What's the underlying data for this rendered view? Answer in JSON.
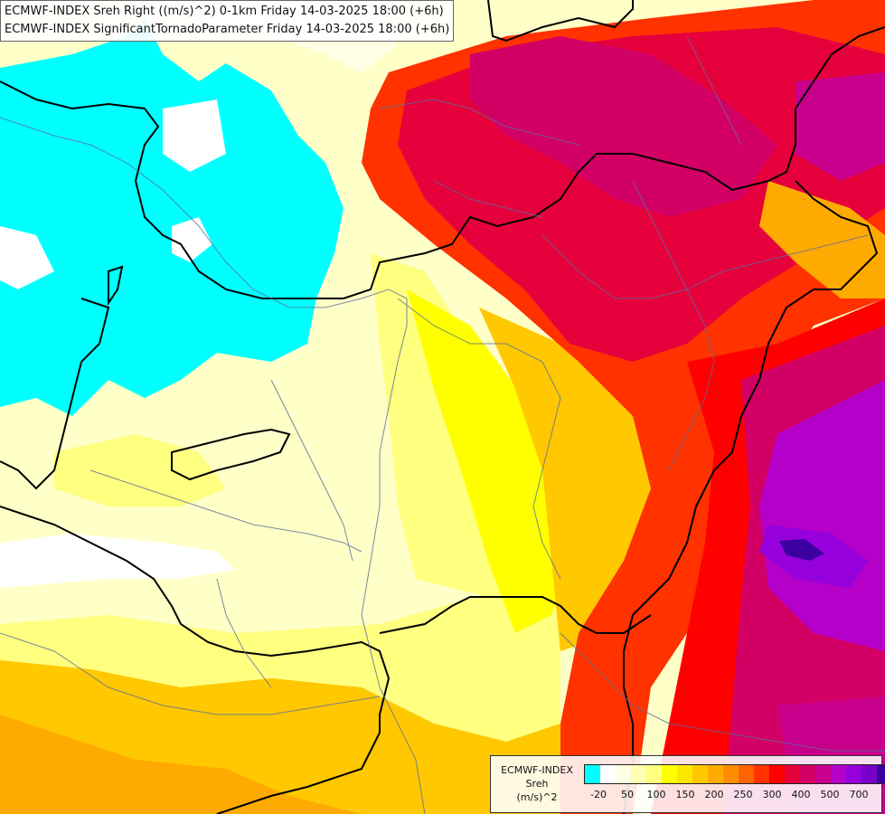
{
  "title_lines": [
    "ECMWF-INDEX Sreh Right ((m/s)^2) 0-1km Friday 14-03-2025 18:00 (+6h)",
    "ECMWF-INDEX SignificantTornadoParameter Friday 14-03-2025 18:00 (+6h)"
  ],
  "legend": {
    "line1": "ECMWF-INDEX",
    "line2": "Sreh",
    "line3": "(m/s)^2",
    "colors": [
      "#00ffff",
      "#ffffff",
      "#ffffe6",
      "#ffffb4",
      "#ffff80",
      "#ffff00",
      "#ffe600",
      "#ffc800",
      "#ffaa00",
      "#ff8c00",
      "#ff6400",
      "#ff3200",
      "#ff0000",
      "#e6003c",
      "#d20064",
      "#c8008c",
      "#b400c8",
      "#9600dc",
      "#7800c8",
      "#3c00a0",
      "#000080"
    ],
    "ticks": [
      "-20",
      "50",
      "100",
      "150",
      "200",
      "250",
      "300",
      "400",
      "500",
      "700"
    ]
  },
  "colors": {
    "cyan": "#00ffff",
    "white": "#ffffff",
    "pale_yellow": "#ffffc8",
    "yellow": "#ffff00",
    "orange": "#ffaa00",
    "red": "#ff0000",
    "crimson": "#e6003c",
    "magenta": "#c8008c",
    "purple": "#8c00c8",
    "border_line": "#000000",
    "river_line": "#5a6e9a"
  }
}
